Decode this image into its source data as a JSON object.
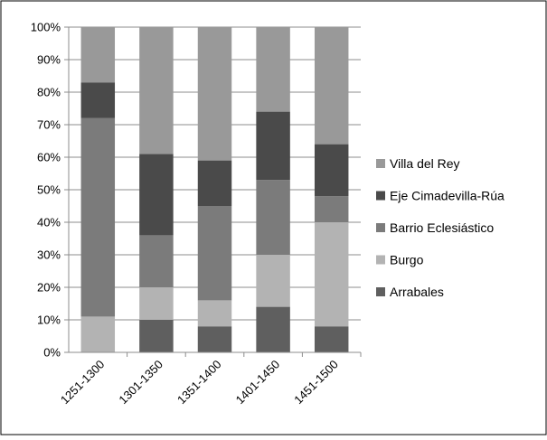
{
  "chart_data": {
    "type": "bar",
    "stacked": true,
    "normalized": true,
    "title": "",
    "xlabel": "",
    "ylabel": "",
    "categories": [
      "1251-1300",
      "1301-1350",
      "1351-1400",
      "1401-1450",
      "1451-1500"
    ],
    "ylim": [
      0,
      100
    ],
    "y_ticks": [
      "0%",
      "10%",
      "20%",
      "30%",
      "40%",
      "50%",
      "60%",
      "70%",
      "80%",
      "90%",
      "100%"
    ],
    "series": [
      {
        "name": "Arrabales",
        "color": "#5f5f5f",
        "values": [
          0,
          10,
          8,
          14,
          8
        ]
      },
      {
        "name": "Burgo",
        "color": "#b3b3b3",
        "values": [
          11,
          10,
          8,
          16,
          32
        ]
      },
      {
        "name": "Barrio Eclesiástico",
        "color": "#7b7b7b",
        "values": [
          61,
          16,
          29,
          23,
          8
        ]
      },
      {
        "name": "Eje Cimadevilla-Rúa",
        "color": "#4a4a4a",
        "values": [
          11,
          25,
          14,
          21,
          16
        ]
      },
      {
        "name": "Villa del Rey",
        "color": "#999999",
        "values": [
          17,
          39,
          41,
          26,
          36
        ]
      }
    ],
    "legend_position": "right",
    "grid": true
  }
}
